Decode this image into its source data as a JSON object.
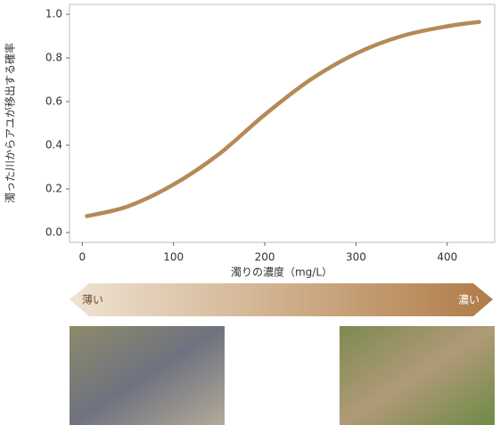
{
  "chart_data": {
    "type": "line",
    "y_label": "濁った川からアユが移出する確率",
    "x_label": "濁りの濃度（mg/L）",
    "x": [
      5,
      50,
      100,
      150,
      200,
      250,
      300,
      350,
      400,
      435
    ],
    "values": [
      0.075,
      0.12,
      0.22,
      0.36,
      0.54,
      0.7,
      0.82,
      0.9,
      0.945,
      0.965
    ],
    "color": "#b58a58",
    "xlim": [
      -14,
      452
    ],
    "xticks": [
      0,
      100,
      200,
      300,
      400
    ],
    "ylim": [
      -0.045,
      1.045
    ],
    "yticks": [
      {
        "value": 0,
        "label": "0.0"
      },
      0.2,
      0.4,
      0.6,
      0.8,
      {
        "value": 1,
        "label": "1.0"
      }
    ],
    "annotations": [
      "薄い",
      "濃い"
    ]
  }
}
